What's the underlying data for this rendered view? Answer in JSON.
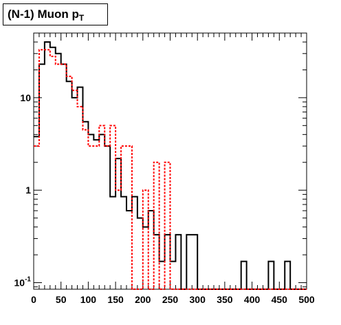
{
  "title": {
    "main": "(N-1) Muon p",
    "sub": "T"
  },
  "chart_data": {
    "type": "step",
    "title": "(N-1) Muon pT",
    "xlabel": "",
    "ylabel": "",
    "xlim": [
      0,
      500
    ],
    "ylim": [
      0.085,
      50
    ],
    "yscale": "log",
    "bin_width": 10,
    "x_bin_starts": [
      0,
      10,
      20,
      30,
      40,
      50,
      60,
      70,
      80,
      90,
      100,
      110,
      120,
      130,
      140,
      150,
      160,
      170,
      180,
      190,
      200,
      210,
      220,
      230,
      240,
      250,
      260,
      270,
      280,
      290,
      300,
      310,
      320,
      330,
      340,
      350,
      360,
      370,
      380,
      390,
      400,
      410,
      420,
      430,
      440,
      450,
      460,
      470,
      480,
      490
    ],
    "x_ticks": [
      0,
      50,
      100,
      150,
      200,
      250,
      300,
      350,
      400,
      450,
      500
    ],
    "x_tick_labels": [
      "0",
      "50",
      "100",
      "150",
      "200",
      "250",
      "300",
      "350",
      "400",
      "450",
      "500"
    ],
    "y_ticks": [
      {
        "value": 0.1,
        "base": "10",
        "exp": "-1"
      },
      {
        "value": 1,
        "base": "1",
        "exp": ""
      },
      {
        "value": 10,
        "base": "10",
        "exp": ""
      }
    ],
    "series": [
      {
        "color": "#000000",
        "style": "solid",
        "values": [
          3.8,
          23,
          40,
          35,
          30,
          23,
          15,
          10,
          13,
          5.5,
          4,
          3.5,
          4,
          3,
          0.85,
          2.2,
          0.85,
          0.6,
          0.85,
          0.5,
          0.4,
          0.6,
          0.33,
          0.17,
          0.33,
          0.17,
          0.33,
          0,
          0.33,
          0.33,
          0,
          0,
          0,
          0,
          0,
          0,
          0,
          0,
          0.17,
          0,
          0,
          0,
          0,
          0.17,
          0,
          0,
          0.17,
          0,
          0,
          0
        ]
      },
      {
        "color": "#ff0000",
        "style": "dashed",
        "values": [
          3,
          33,
          33,
          28,
          23,
          23,
          17,
          12,
          8,
          4.5,
          3,
          3,
          5,
          3,
          5,
          1,
          3,
          3,
          0,
          0,
          1,
          0,
          2,
          0,
          2,
          0,
          0,
          0,
          0,
          0,
          0,
          0,
          0,
          0,
          0,
          0,
          0,
          0,
          0,
          0,
          0,
          0,
          0,
          0,
          0,
          0,
          0,
          0,
          0,
          0
        ]
      }
    ],
    "grid": false,
    "legend": "none"
  }
}
